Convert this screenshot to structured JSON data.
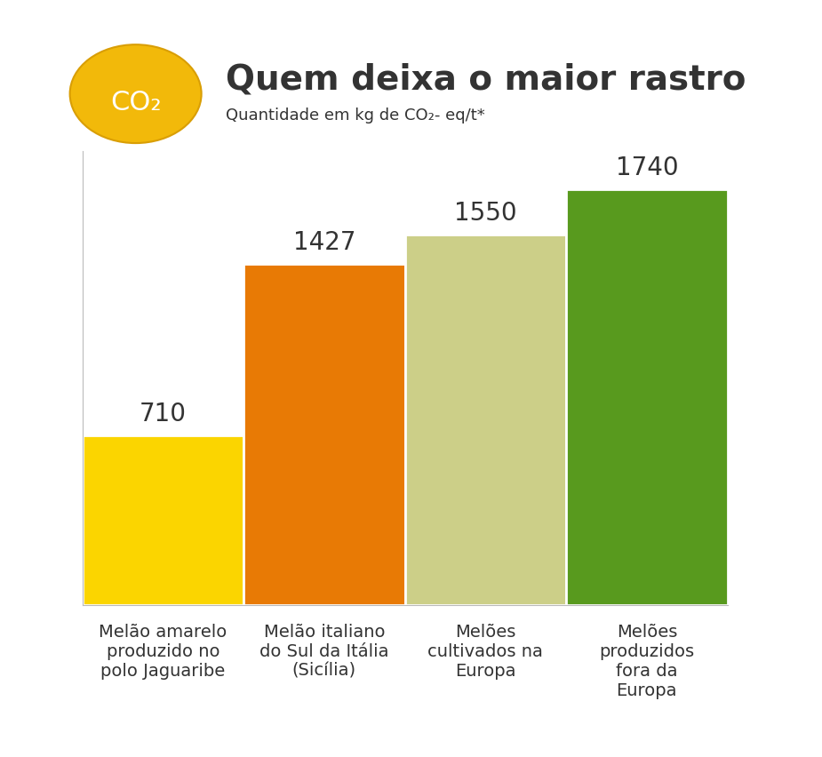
{
  "chart_data": {
    "type": "bar",
    "title": "Quem deixa o maior rastro",
    "subtitle": "Quantidade em kg de CO₂- eq/t*",
    "annotations": [
      "CO₂"
    ],
    "categories": [
      "Melão amarelo\nproduzido no\npolo Jaguaribe",
      "Melão italiano\ndo Sul da Itália\n(Sicília)",
      "Melões\ncultivados na\nEuropa",
      "Melões\nproduzidos\nfora da\nEuropa"
    ],
    "values": [
      710,
      1427,
      1550,
      1740
    ],
    "colors": [
      "#fbd500",
      "#e87a05",
      "#cccf88",
      "#589a1e"
    ],
    "ylim": [
      0,
      1900
    ],
    "data_labels": true,
    "tick_labels": "x",
    "grid": false
  }
}
